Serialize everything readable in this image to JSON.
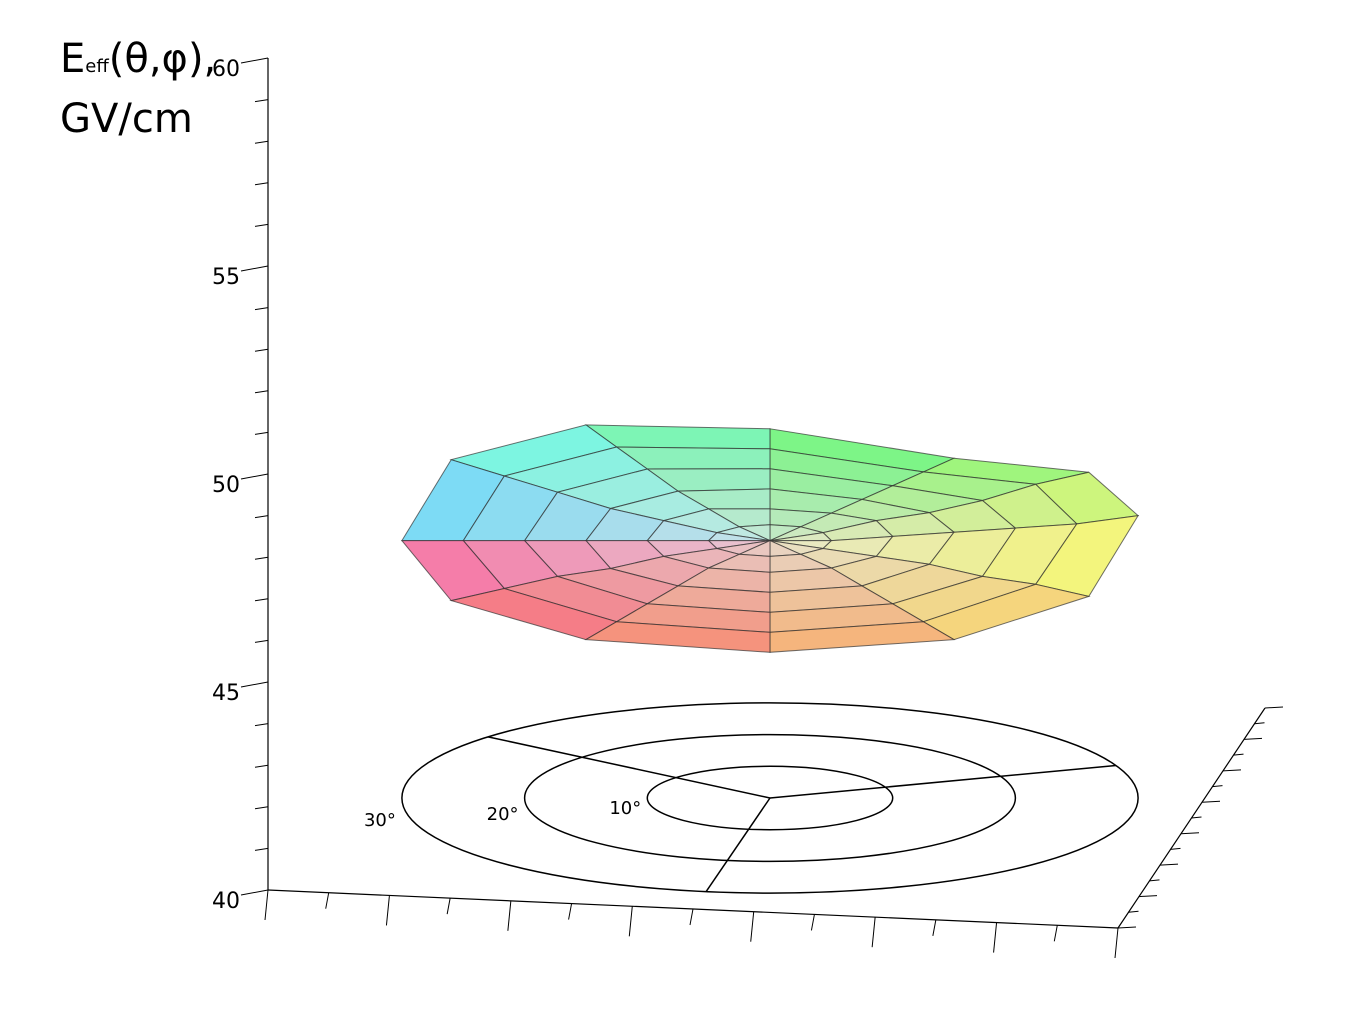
{
  "chart_data": {
    "type": "polar_surface",
    "zlabel": {
      "symbol": "E",
      "subscript": "eff",
      "args": "(θ,φ),",
      "unit": "GV/cm"
    },
    "zlim": [
      40,
      60
    ],
    "zticks": [
      40,
      45,
      50,
      55,
      60
    ],
    "rings": [
      {
        "value": 10,
        "label": "10°"
      },
      {
        "value": 20,
        "label": "20°"
      },
      {
        "value": 30,
        "label": "30°"
      }
    ],
    "phi_gridlines": [
      20,
      140,
      260
    ],
    "theta": [
      0,
      5,
      10,
      15,
      20,
      25,
      30
    ],
    "phi": [
      0,
      30,
      60,
      90,
      120,
      150,
      180,
      210,
      240,
      270,
      300,
      330
    ],
    "z": [
      [
        48.4,
        48.4,
        48.4,
        48.4,
        48.4,
        48.4,
        48.4,
        48.4,
        48.4,
        48.4,
        48.4,
        48.4
      ],
      [
        48.4,
        48.4,
        48.4,
        48.4,
        48.4,
        48.4,
        48.4,
        48.4,
        48.4,
        48.4,
        48.4,
        48.4
      ],
      [
        48.5,
        48.5,
        48.4,
        48.4,
        48.5,
        48.5,
        48.4,
        48.4,
        48.4,
        48.4,
        48.4,
        48.4
      ],
      [
        48.6,
        48.5,
        48.4,
        48.5,
        48.6,
        48.6,
        48.4,
        48.3,
        48.3,
        48.3,
        48.3,
        48.4
      ],
      [
        48.7,
        48.6,
        48.4,
        48.6,
        48.8,
        48.8,
        48.4,
        48.3,
        48.2,
        48.2,
        48.2,
        48.3
      ],
      [
        48.8,
        48.8,
        48.4,
        48.7,
        49.0,
        49.0,
        48.4,
        48.2,
        48.1,
        48.1,
        48.1,
        48.3
      ],
      [
        49.0,
        48.9,
        48.4,
        48.8,
        49.2,
        49.2,
        48.4,
        48.1,
        48.0,
        48.0,
        48.0,
        48.2
      ]
    ]
  }
}
